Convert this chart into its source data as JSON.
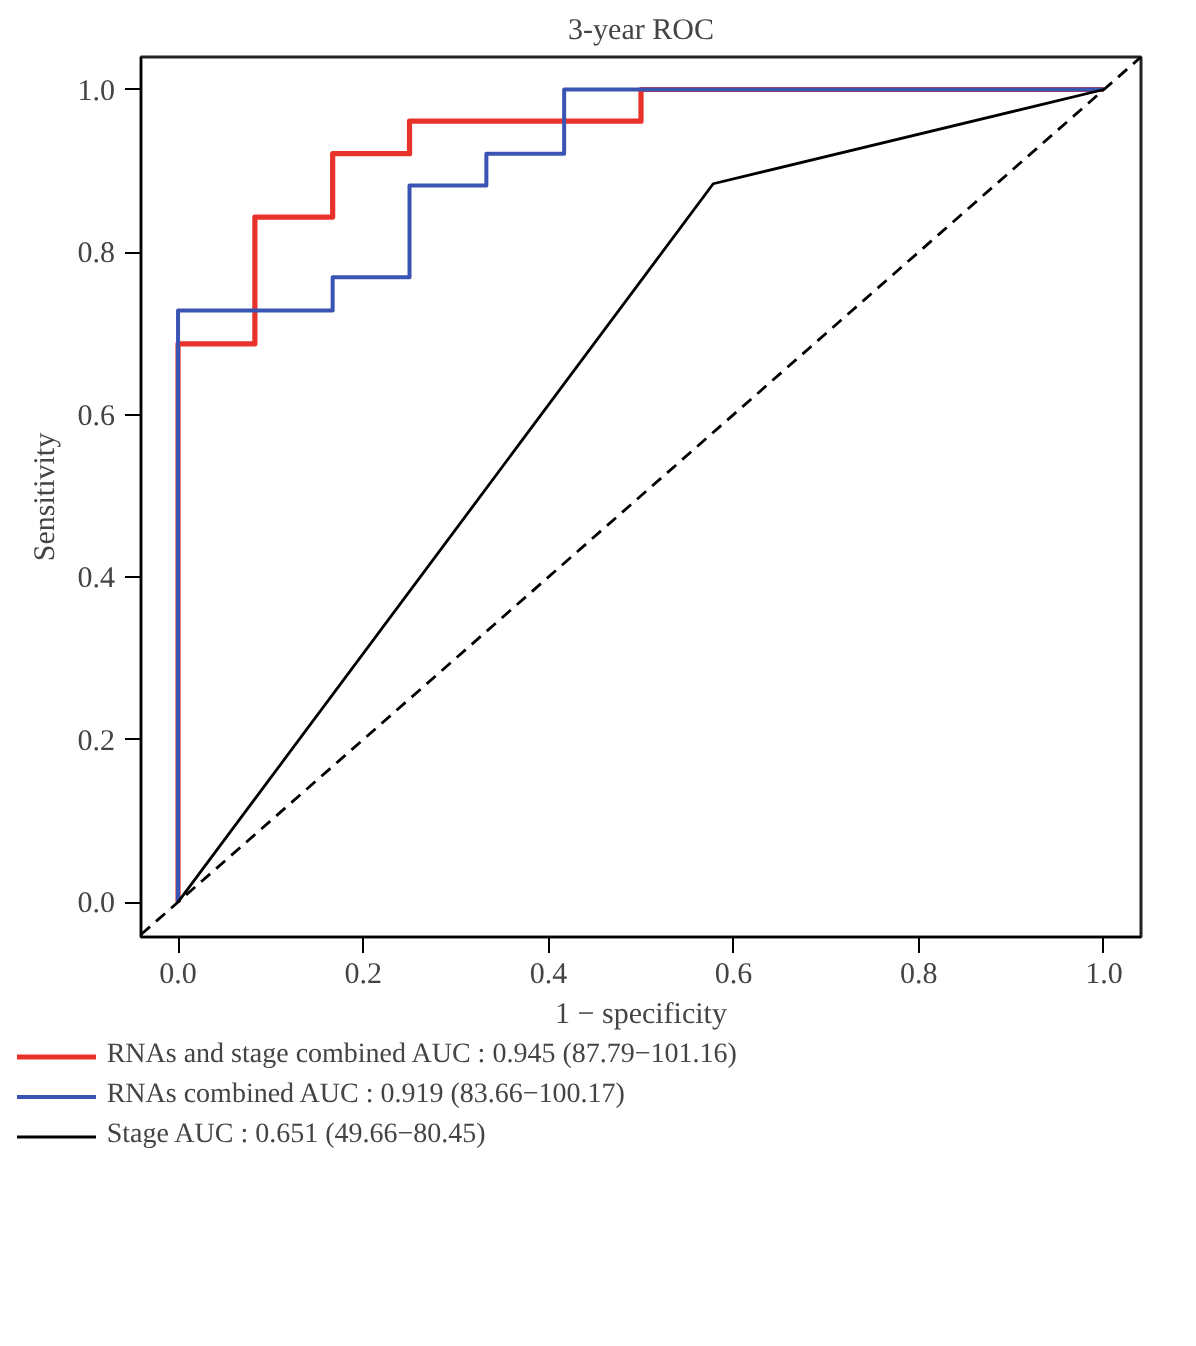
{
  "chart_data": {
    "type": "step",
    "title": "3-year ROC",
    "xlabel": "1 − specificity",
    "ylabel": "Sensitivity",
    "xlim": [
      -0.04,
      1.04
    ],
    "ylim": [
      -0.043,
      1.04
    ],
    "xticks": [
      {
        "value": 0,
        "label": "0.0"
      },
      {
        "value": 0.2,
        "label": "0.2"
      },
      {
        "value": 0.4,
        "label": "0.4"
      },
      {
        "value": 0.6,
        "label": "0.6"
      },
      {
        "value": 0.8,
        "label": "0.8"
      },
      {
        "value": 1,
        "label": "1.0"
      }
    ],
    "yticks": [
      {
        "value": 0,
        "label": "0.0"
      },
      {
        "value": 0.2,
        "label": "0.2"
      },
      {
        "value": 0.4,
        "label": "0.4"
      },
      {
        "value": 0.6,
        "label": "0.6"
      },
      {
        "value": 0.8,
        "label": "0.8"
      },
      {
        "value": 1,
        "label": "1.0"
      }
    ],
    "grid": false,
    "legend": "bottom",
    "line_style": "solid",
    "series": [
      {
        "name": "RNAs and stage combined AUC : 0.945 (87.79−101.16)",
        "color": "#e8322a",
        "x": [
          0,
          0,
          0.083,
          0.167,
          0.25,
          0.5,
          1
        ],
        "values": [
          0,
          0.687,
          0.843,
          0.921,
          0.961,
          1,
          1
        ]
      },
      {
        "name": "RNAs combined AUC : 0.919 (83.66−100.17)",
        "color": "#3a54b4",
        "x": [
          0,
          0,
          0.167,
          0.25,
          0.333,
          0.417,
          1
        ],
        "values": [
          0,
          0.728,
          0.769,
          0.882,
          0.921,
          1,
          1
        ]
      },
      {
        "name": "Stage AUC : 0.651 (49.66−80.45)",
        "color": "#000000",
        "type": "line",
        "x": [
          0,
          0.578,
          1
        ],
        "values": [
          0,
          0.884,
          1
        ]
      },
      {
        "color": "#000000",
        "type": "line",
        "line_style": "dashed",
        "x": [
          -0.04,
          1.04
        ],
        "values": [
          -0.04,
          1.04
        ]
      }
    ]
  }
}
